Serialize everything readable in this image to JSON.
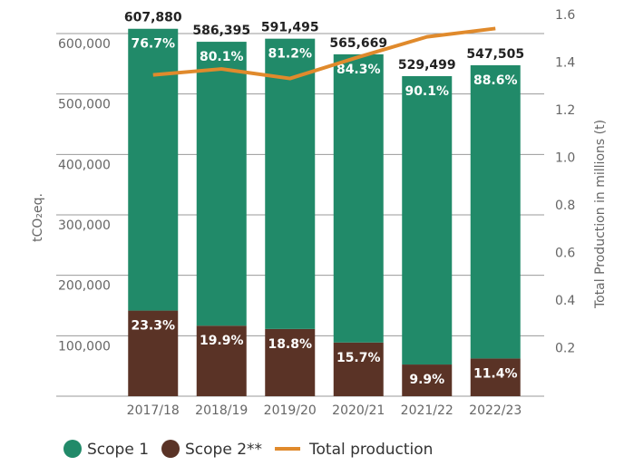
{
  "chart_data": {
    "type": "stacked_bar_line",
    "categories": [
      "2017/18",
      "2018/19",
      "2019/20",
      "2020/21",
      "2021/22",
      "2022/23"
    ],
    "series": [
      {
        "name": "Scope 1",
        "color": "#218a69",
        "values": [
          466244,
          469702,
          480294,
          476859,
          477079,
          485089
        ],
        "percent_labels": [
          "76.7%",
          "80.1%",
          "81.2%",
          "84.3%",
          "90.1%",
          "88.6%"
        ]
      },
      {
        "name": "Scope 2**",
        "color": "#5a3326",
        "values": [
          141636,
          116693,
          111201,
          88810,
          52420,
          62416
        ],
        "percent_labels": [
          "23.3%",
          "19.9%",
          "18.8%",
          "15.7%",
          "9.9%",
          "11.4%"
        ]
      },
      {
        "name": "Total production",
        "color": "#e08a2c",
        "axis": "y2",
        "values": [
          1.35,
          1.375,
          1.335,
          1.425,
          1.51,
          1.545
        ]
      }
    ],
    "totals": {
      "values": [
        607880,
        586395,
        591495,
        565669,
        529499,
        547505
      ],
      "value_labels": [
        "607,880",
        "586,395",
        "591,495",
        "565,669",
        "529,499",
        "547,505"
      ]
    },
    "ylabel": "tCO₂eq.",
    "y2label": "Total Production in millions (t)",
    "ylim": [
      0,
      630000
    ],
    "yticks": [
      {
        "value": 100000,
        "label": "100,000"
      },
      {
        "value": 200000,
        "label": "200,000"
      },
      {
        "value": 300000,
        "label": "300,000"
      },
      {
        "value": 400000,
        "label": "400,000"
      },
      {
        "value": 500000,
        "label": "500,000"
      },
      {
        "value": 600000,
        "label": "600,000"
      }
    ],
    "y2lim": [
      0,
      1.6
    ],
    "y2ticks": [
      0.2,
      0.4,
      0.6,
      0.8,
      {
        "value": 1,
        "label": "1.0"
      },
      1.2,
      1.4,
      1.6
    ],
    "grid": true
  }
}
